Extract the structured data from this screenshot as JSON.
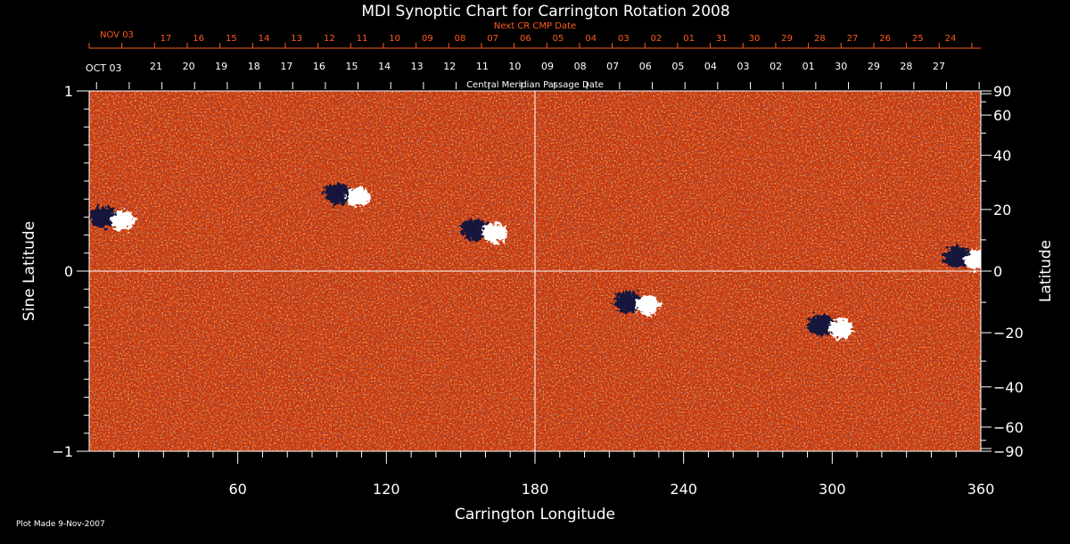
{
  "chart_data": {
    "type": "heatmap",
    "title": "MDI Synoptic Chart for Carrington Rotation 2008",
    "xlabel": "Carrington Longitude",
    "ylabel_left": "Sine Latitude",
    "ylabel_right": "Latitude",
    "xlim": [
      0,
      360
    ],
    "ylim": [
      -1,
      1
    ],
    "x_ticks": [
      60,
      120,
      180,
      240,
      300,
      360
    ],
    "y_left_ticks": [
      {
        "v": 1,
        "label": "1"
      },
      {
        "v": 0,
        "label": "0"
      },
      {
        "v": -1,
        "label": "−1"
      }
    ],
    "y_right_ticks": [
      90,
      60,
      40,
      20,
      0,
      -20,
      -40,
      -60,
      -90
    ],
    "y_right_tick_labels": [
      "90",
      "60",
      "40",
      "20",
      "0",
      "−20",
      "−40",
      "−60",
      "−90"
    ],
    "top_axis_caption": "Central Meridian Passage Date",
    "top_axis_start_label": "OCT 03",
    "top_axis_dates": [
      "21",
      "20",
      "19",
      "18",
      "17",
      "16",
      "15",
      "14",
      "13",
      "12",
      "11",
      "10",
      "09",
      "08",
      "07",
      "06",
      "05",
      "04",
      "03",
      "02",
      "01",
      "30",
      "29",
      "28",
      "27"
    ],
    "next_axis_caption": "Next CR CMP Date",
    "next_axis_start_label": "NOV 03",
    "next_axis_dates": [
      "17",
      "16",
      "15",
      "14",
      "13",
      "12",
      "11",
      "10",
      "09",
      "08",
      "07",
      "06",
      "05",
      "04",
      "03",
      "02",
      "01",
      "31",
      "30",
      "29",
      "28",
      "27",
      "26",
      "25",
      "24"
    ],
    "footer": "Plot Made  9-Nov-2007",
    "grid": {
      "crosshair_longitude": 180,
      "crosshair_sine_latitude": 0
    },
    "colors": {
      "background": "#c8360c",
      "positive": "#ffffff",
      "negative": "#14143c",
      "speckle": "#ff8a28",
      "label_orange": "#ff5a1e"
    },
    "features": [
      {
        "lon": 10,
        "sinlat": 0.3,
        "polarity": "mixed"
      },
      {
        "lon": 105,
        "sinlat": 0.43,
        "polarity": "mixed"
      },
      {
        "lon": 160,
        "sinlat": 0.23,
        "polarity": "mixed"
      },
      {
        "lon": 222,
        "sinlat": -0.17,
        "polarity": "mixed"
      },
      {
        "lon": 300,
        "sinlat": -0.3,
        "polarity": "mixed"
      },
      {
        "lon": 355,
        "sinlat": 0.08,
        "polarity": "mixed"
      }
    ]
  }
}
